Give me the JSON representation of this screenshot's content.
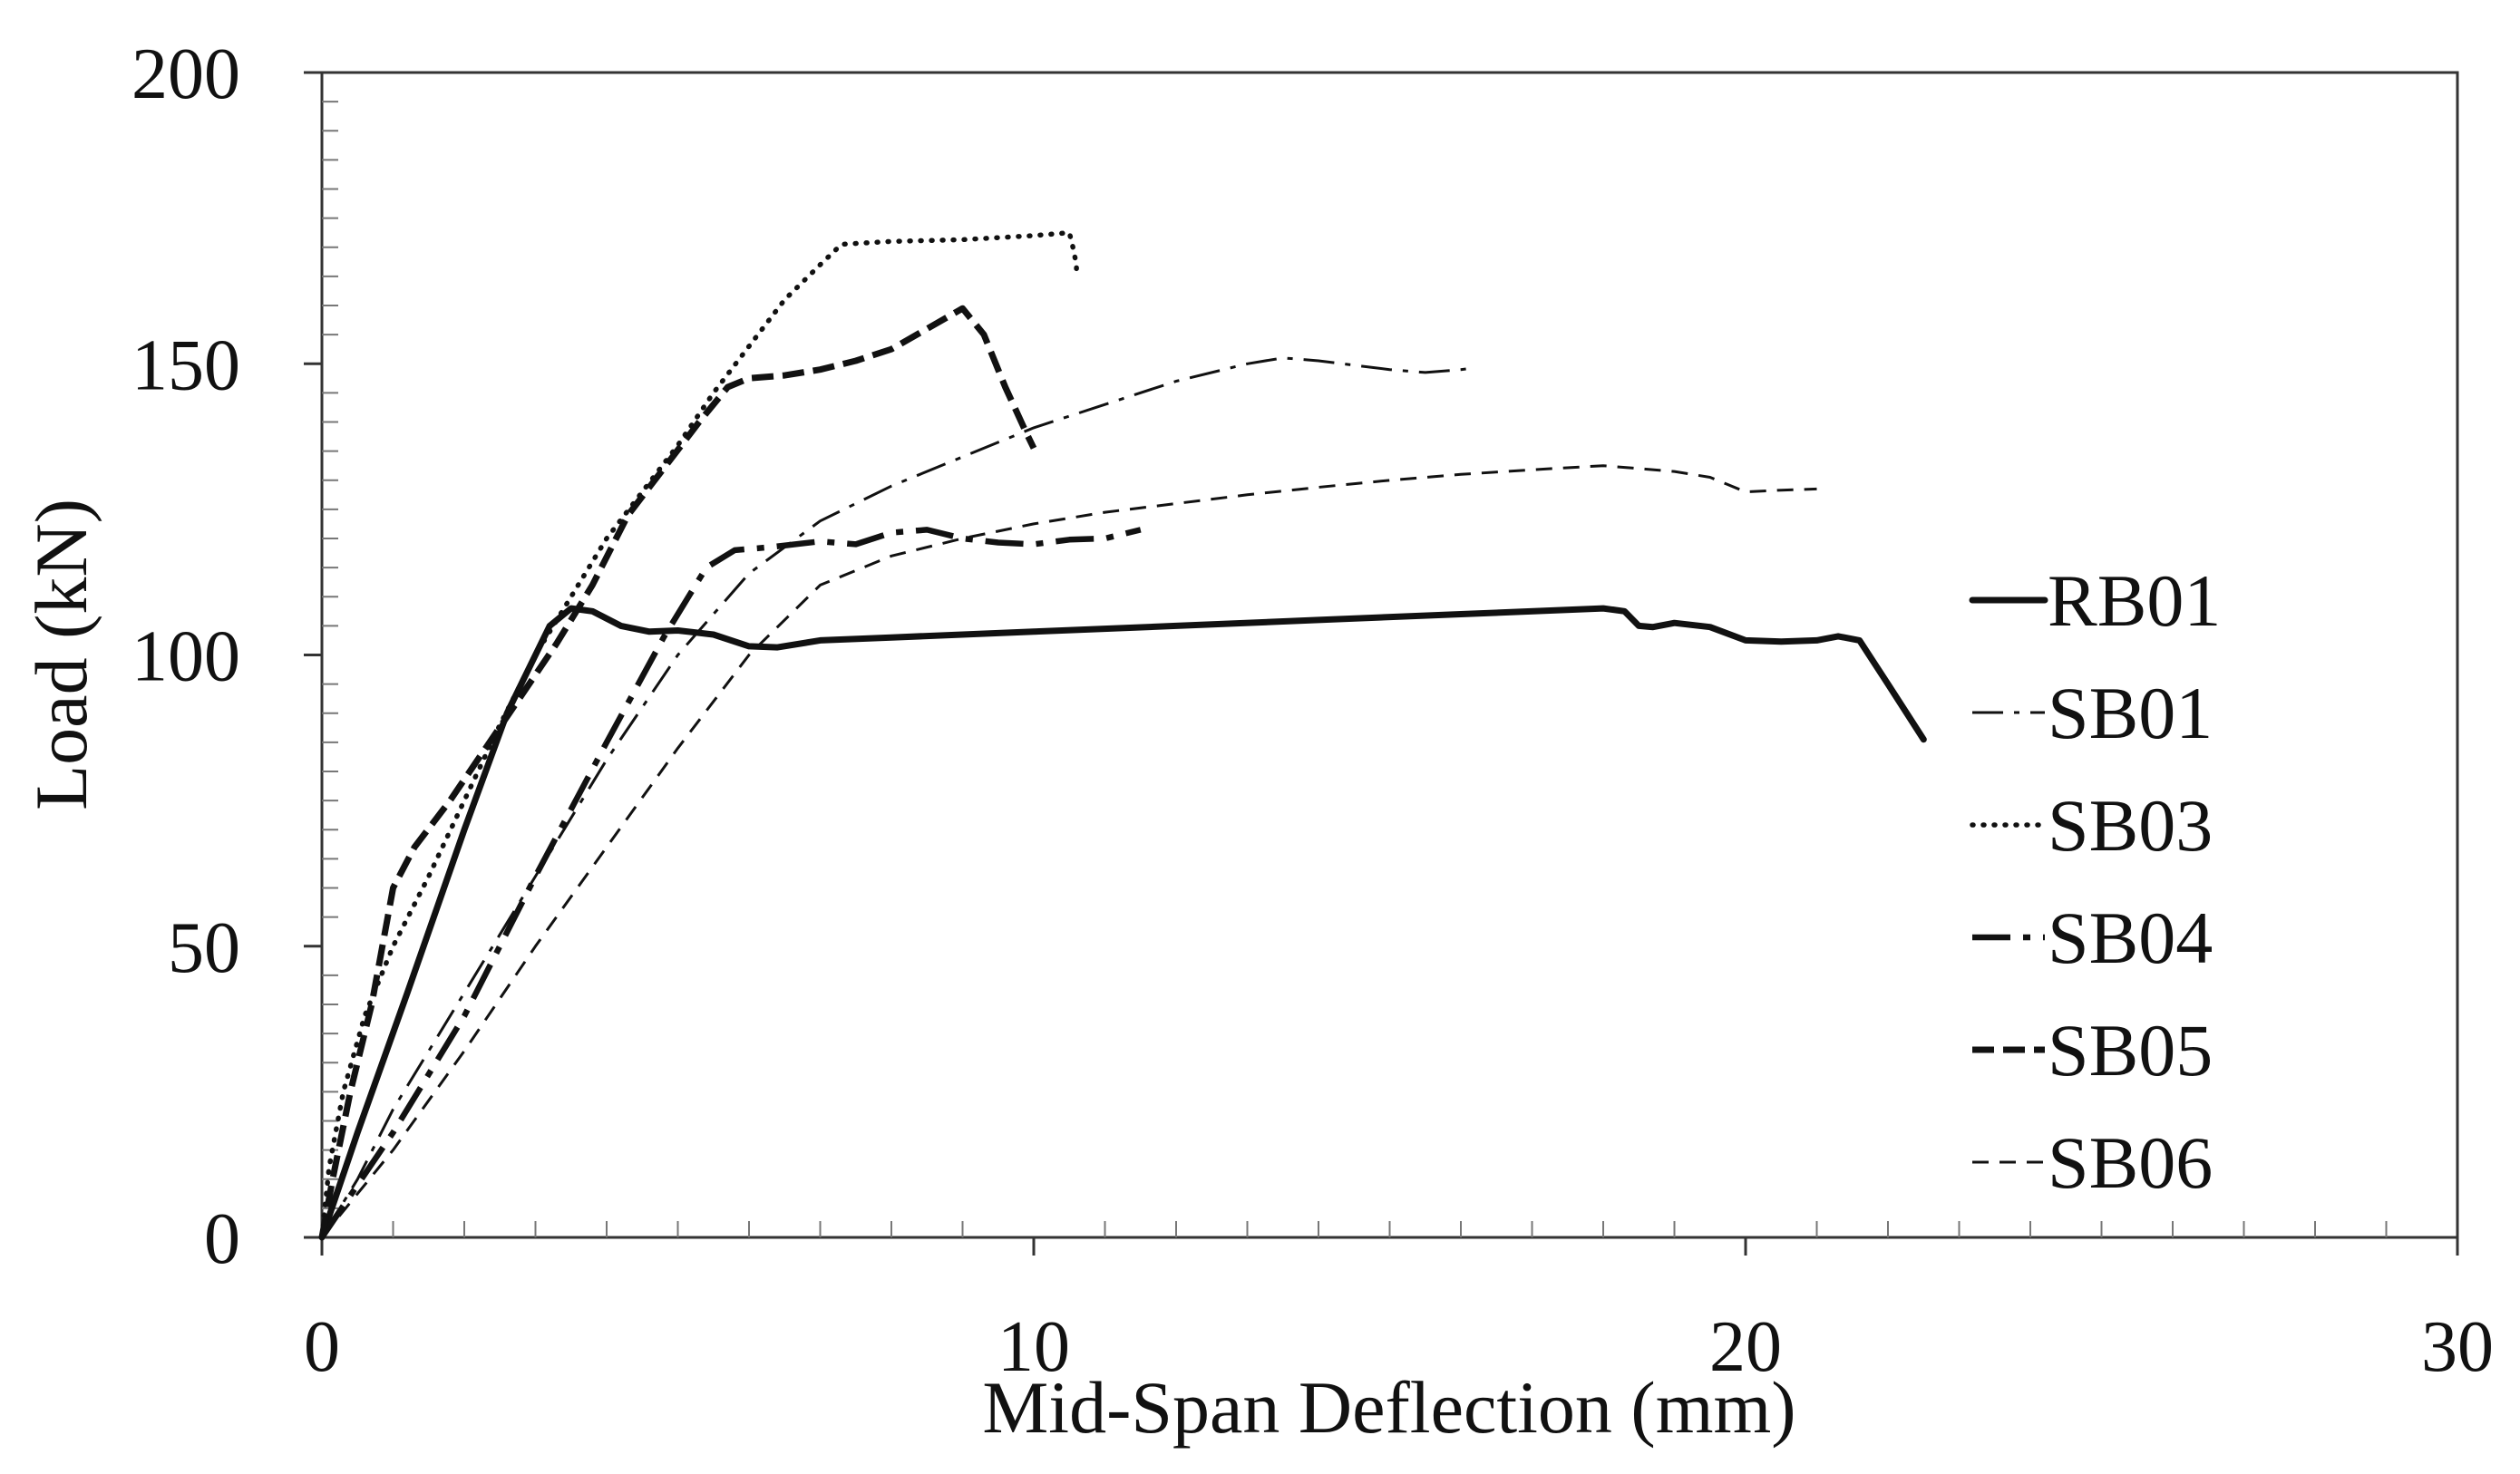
{
  "chart_data": {
    "type": "line",
    "title": "",
    "xlabel": "Mid-Span Deflection (mm)",
    "ylabel": "Load (kN)",
    "xlim": [
      0,
      30
    ],
    "ylim": [
      0,
      200
    ],
    "x_ticks": [
      0,
      10,
      20,
      30
    ],
    "y_ticks": [
      0,
      50,
      100,
      150,
      200
    ],
    "x_tick_labels": [
      "0",
      "10",
      "20",
      "30"
    ],
    "y_tick_labels": [
      "0",
      "50",
      "100",
      "150",
      "200"
    ],
    "grid": false,
    "legend_position": "right",
    "series": [
      {
        "name": "RB01",
        "style": "solid",
        "color": "#111111",
        "points": [
          [
            0,
            0
          ],
          [
            0.5,
            18
          ],
          [
            1.2,
            42
          ],
          [
            2,
            70
          ],
          [
            2.6,
            90
          ],
          [
            3.2,
            105
          ],
          [
            3.5,
            108
          ],
          [
            3.8,
            107.5
          ],
          [
            4.2,
            105
          ],
          [
            4.6,
            104
          ],
          [
            5.0,
            104.2
          ],
          [
            5.5,
            103.5
          ],
          [
            6.0,
            101.5
          ],
          [
            6.4,
            101.3
          ],
          [
            7.0,
            102.5
          ],
          [
            8.0,
            103
          ],
          [
            10,
            104
          ],
          [
            12,
            105
          ],
          [
            14,
            106
          ],
          [
            16,
            107
          ],
          [
            18,
            108
          ],
          [
            18.3,
            107.5
          ],
          [
            18.5,
            105
          ],
          [
            18.7,
            104.8
          ],
          [
            19.0,
            105.5
          ],
          [
            19.5,
            104.8
          ],
          [
            20.0,
            102.5
          ],
          [
            20.5,
            102.3
          ],
          [
            21.0,
            102.5
          ],
          [
            21.3,
            103.2
          ],
          [
            21.6,
            102.5
          ],
          [
            22.0,
            95
          ],
          [
            22.5,
            85.5
          ]
        ]
      },
      {
        "name": "SB01",
        "style": "dash-dot",
        "color": "#111111",
        "points": [
          [
            0,
            0
          ],
          [
            0.5,
            10
          ],
          [
            1,
            22
          ],
          [
            2,
            42
          ],
          [
            3,
            62
          ],
          [
            4,
            82
          ],
          [
            5,
            100
          ],
          [
            6,
            114
          ],
          [
            7,
            123
          ],
          [
            8,
            129
          ],
          [
            9,
            134
          ],
          [
            10,
            139
          ],
          [
            11,
            143
          ],
          [
            12,
            147
          ],
          [
            13,
            150
          ],
          [
            13.5,
            151
          ],
          [
            14,
            150.5
          ],
          [
            15,
            149
          ],
          [
            15.5,
            148.5
          ],
          [
            16,
            149
          ],
          [
            16.2,
            149.3
          ]
        ]
      },
      {
        "name": "SB03",
        "style": "dotted",
        "color": "#111111",
        "points": [
          [
            0,
            0
          ],
          [
            0.1,
            12
          ],
          [
            0.3,
            25
          ],
          [
            0.6,
            38
          ],
          [
            1,
            50
          ],
          [
            1.5,
            62
          ],
          [
            2,
            75
          ],
          [
            2.5,
            88
          ],
          [
            3,
            100
          ],
          [
            3.5,
            110
          ],
          [
            4,
            120
          ],
          [
            4.5,
            128
          ],
          [
            5,
            136
          ],
          [
            5.5,
            145
          ],
          [
            6,
            153
          ],
          [
            6.5,
            161
          ],
          [
            7,
            167
          ],
          [
            7.3,
            170.5
          ],
          [
            8,
            171
          ],
          [
            9,
            171.3
          ],
          [
            10,
            172
          ],
          [
            10.5,
            172.5
          ],
          [
            10.55,
            170
          ],
          [
            10.6,
            167
          ],
          [
            10.6,
            165
          ]
        ]
      },
      {
        "name": "SB04",
        "style": "dash-dot-heavy",
        "color": "#111111",
        "points": [
          [
            0,
            0
          ],
          [
            1,
            18
          ],
          [
            2,
            38
          ],
          [
            3,
            62
          ],
          [
            4,
            85
          ],
          [
            4.8,
            103
          ],
          [
            5.4,
            115
          ],
          [
            5.8,
            118
          ],
          [
            6.3,
            118.5
          ],
          [
            7,
            119.5
          ],
          [
            7.5,
            119
          ],
          [
            8,
            121
          ],
          [
            8.5,
            121.5
          ],
          [
            9,
            120
          ],
          [
            9.5,
            119.3
          ],
          [
            10,
            119
          ],
          [
            10.5,
            119.8
          ],
          [
            11,
            120
          ],
          [
            11.5,
            121.5
          ]
        ]
      },
      {
        "name": "SB05",
        "style": "heavy-dash",
        "color": "#111111",
        "points": [
          [
            0,
            0
          ],
          [
            0.15,
            10
          ],
          [
            0.4,
            25
          ],
          [
            0.7,
            40
          ],
          [
            1,
            60
          ],
          [
            1.3,
            67
          ],
          [
            1.8,
            75
          ],
          [
            2.3,
            84
          ],
          [
            2.8,
            93
          ],
          [
            3.3,
            102
          ],
          [
            3.8,
            112
          ],
          [
            4.3,
            124
          ],
          [
            4.8,
            132
          ],
          [
            5.3,
            140
          ],
          [
            5.7,
            146
          ],
          [
            6.0,
            147.5
          ],
          [
            6.5,
            148
          ],
          [
            7.0,
            149
          ],
          [
            7.5,
            150.5
          ],
          [
            8.0,
            152.5
          ],
          [
            8.5,
            156
          ],
          [
            9.0,
            159.5
          ],
          [
            9.3,
            155
          ],
          [
            9.6,
            146
          ],
          [
            9.9,
            138
          ],
          [
            10.0,
            135.5
          ]
        ]
      },
      {
        "name": "SB06",
        "style": "dashed",
        "color": "#111111",
        "points": [
          [
            0,
            0
          ],
          [
            1,
            15
          ],
          [
            2,
            32
          ],
          [
            3,
            50
          ],
          [
            4,
            67
          ],
          [
            5,
            84
          ],
          [
            6,
            100
          ],
          [
            7,
            112
          ],
          [
            8,
            117
          ],
          [
            9,
            120
          ],
          [
            10,
            122.5
          ],
          [
            11,
            124.5
          ],
          [
            12,
            126
          ],
          [
            13,
            127.5
          ],
          [
            14,
            128.8
          ],
          [
            15,
            130
          ],
          [
            16,
            131
          ],
          [
            17,
            131.8
          ],
          [
            18,
            132.5
          ],
          [
            18.5,
            132
          ],
          [
            19,
            131.5
          ],
          [
            19.5,
            130.5
          ],
          [
            20,
            128
          ],
          [
            20.5,
            128.3
          ],
          [
            21,
            128.5
          ]
        ]
      }
    ]
  }
}
